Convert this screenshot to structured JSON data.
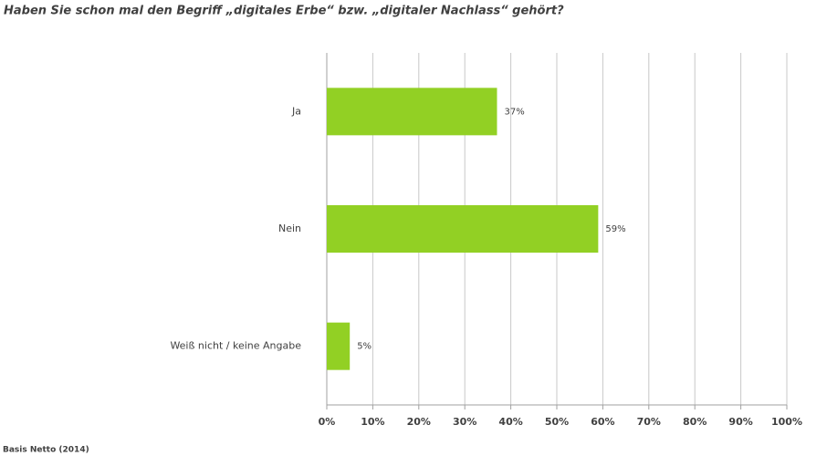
{
  "chart_data": {
    "type": "hbar",
    "title": "Haben Sie schon mal den Begriff „digitales Erbe“ bzw. „digitaler Nachlass“ gehört?",
    "categories": [
      "Ja",
      "Nein",
      "Weiß nicht / keine Angabe"
    ],
    "values": [
      37,
      59,
      5
    ],
    "value_labels": [
      "37%",
      "59%",
      "5%"
    ],
    "color": "#92d024",
    "xlim": [
      0,
      100
    ],
    "xticks": [
      {
        "value": 0,
        "label": "0%"
      },
      {
        "value": 10,
        "label": "10%"
      },
      {
        "value": 20,
        "label": "20%"
      },
      {
        "value": 30,
        "label": "30%"
      },
      {
        "value": 40,
        "label": "40%"
      },
      {
        "value": 50,
        "label": "50%"
      },
      {
        "value": 60,
        "label": "60%"
      },
      {
        "value": 70,
        "label": "70%"
      },
      {
        "value": 80,
        "label": "80%"
      },
      {
        "value": 90,
        "label": "90%"
      },
      {
        "value": 100,
        "label": "100%"
      }
    ],
    "grid": true,
    "note": "Basis Netto (2014)"
  }
}
